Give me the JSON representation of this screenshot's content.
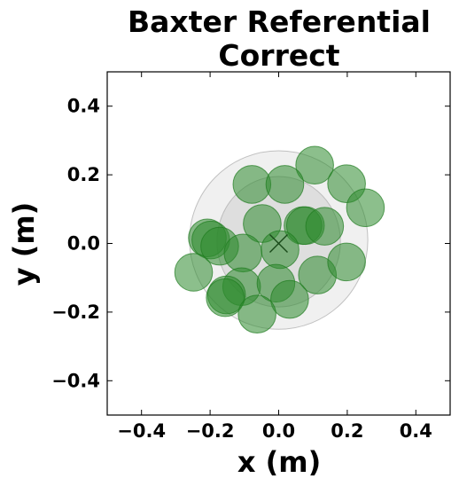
{
  "chart_data": {
    "type": "scatter",
    "title": "Baxter Referential\nCorrect",
    "title_lines": [
      "Baxter Referential",
      "Correct"
    ],
    "xlabel": "x (m)",
    "ylabel": "y (m)",
    "xlim": [
      -0.5,
      0.5
    ],
    "ylim": [
      -0.5,
      0.5
    ],
    "xticks": [
      -0.4,
      -0.2,
      0.0,
      0.2,
      0.4
    ],
    "yticks": [
      -0.4,
      -0.2,
      0.0,
      0.2,
      0.4
    ],
    "xtick_labels": [
      "−0.4",
      "−0.2",
      "0.0",
      "0.2",
      "0.4"
    ],
    "ytick_labels": [
      "−0.4",
      "−0.2",
      "0.0",
      "0.2",
      "0.4"
    ],
    "grid": false,
    "marker_radius_m": 0.055,
    "marker_color": "#2e8b2e",
    "marker_opacity": 0.55,
    "center_marker": {
      "symbol": "x",
      "x": 0.0,
      "y": 0.0
    },
    "ellipses": [
      {
        "cx": 0.0,
        "cy": 0.01,
        "rx": 0.26,
        "ry": 0.26,
        "color": "#dddddd"
      },
      {
        "cx": 0.0,
        "cy": 0.005,
        "rx": 0.18,
        "ry": 0.19,
        "color": "#c8c8c8"
      }
    ],
    "points": [
      {
        "x": 0.105,
        "y": 0.228
      },
      {
        "x": -0.078,
        "y": 0.172
      },
      {
        "x": 0.018,
        "y": 0.172
      },
      {
        "x": 0.198,
        "y": 0.174
      },
      {
        "x": 0.253,
        "y": 0.104
      },
      {
        "x": -0.048,
        "y": 0.058
      },
      {
        "x": 0.071,
        "y": 0.052
      },
      {
        "x": 0.078,
        "y": 0.052
      },
      {
        "x": 0.134,
        "y": 0.05
      },
      {
        "x": -0.208,
        "y": 0.016
      },
      {
        "x": -0.198,
        "y": 0.01
      },
      {
        "x": -0.172,
        "y": -0.008
      },
      {
        "x": -0.104,
        "y": -0.028
      },
      {
        "x": 0.004,
        "y": -0.018
      },
      {
        "x": -0.248,
        "y": -0.084
      },
      {
        "x": 0.113,
        "y": -0.092
      },
      {
        "x": 0.198,
        "y": -0.054
      },
      {
        "x": -0.108,
        "y": -0.126
      },
      {
        "x": -0.008,
        "y": -0.116
      },
      {
        "x": -0.152,
        "y": -0.15
      },
      {
        "x": -0.156,
        "y": -0.158
      },
      {
        "x": 0.032,
        "y": -0.163
      },
      {
        "x": -0.063,
        "y": -0.206
      }
    ]
  }
}
